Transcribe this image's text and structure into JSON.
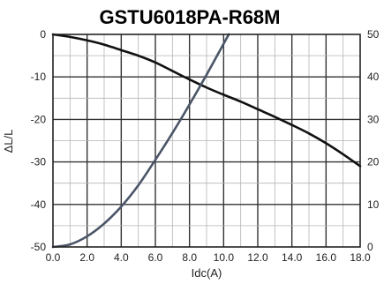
{
  "chart_data": {
    "type": "line",
    "title": "GSTU6018PA-R68M",
    "xlabel": "Idc(A)",
    "ylabel": "ΔL/L",
    "y2label": "",
    "xlim": [
      0,
      18
    ],
    "ylim": [
      -50,
      0
    ],
    "y2lim": [
      0,
      50
    ],
    "x_ticks": [
      "0.0",
      "2.0",
      "4.0",
      "6.0",
      "8.0",
      "10.0",
      "12.0",
      "14.0",
      "16.0",
      "18.0"
    ],
    "y_ticks": [
      "0",
      "-10",
      "-20",
      "-30",
      "-40",
      "-50"
    ],
    "y2_ticks": [
      "50",
      "40",
      "30",
      "20",
      "10",
      "0"
    ],
    "grid": true,
    "series": [
      {
        "axis": "left",
        "color": "#111111",
        "x": [
          0,
          1,
          2,
          3,
          4,
          5,
          6,
          7,
          8,
          9,
          10,
          11,
          12,
          13,
          14,
          15,
          16,
          17,
          18
        ],
        "y": [
          0,
          -0.6,
          -1.4,
          -2.4,
          -3.7,
          -5,
          -6.6,
          -8.6,
          -10.6,
          -12.5,
          -14.2,
          -15.8,
          -17.6,
          -19.4,
          -21.3,
          -23.3,
          -25.6,
          -28.2,
          -31
        ]
      },
      {
        "axis": "right",
        "color": "#4a5568",
        "x": [
          0,
          1,
          2,
          3,
          4,
          5,
          6,
          7,
          8,
          9,
          10,
          10.3
        ],
        "y": [
          0,
          0.6,
          2.5,
          5.5,
          9.5,
          14.5,
          20.5,
          26.8,
          33.5,
          40.5,
          47.8,
          50
        ]
      }
    ]
  }
}
